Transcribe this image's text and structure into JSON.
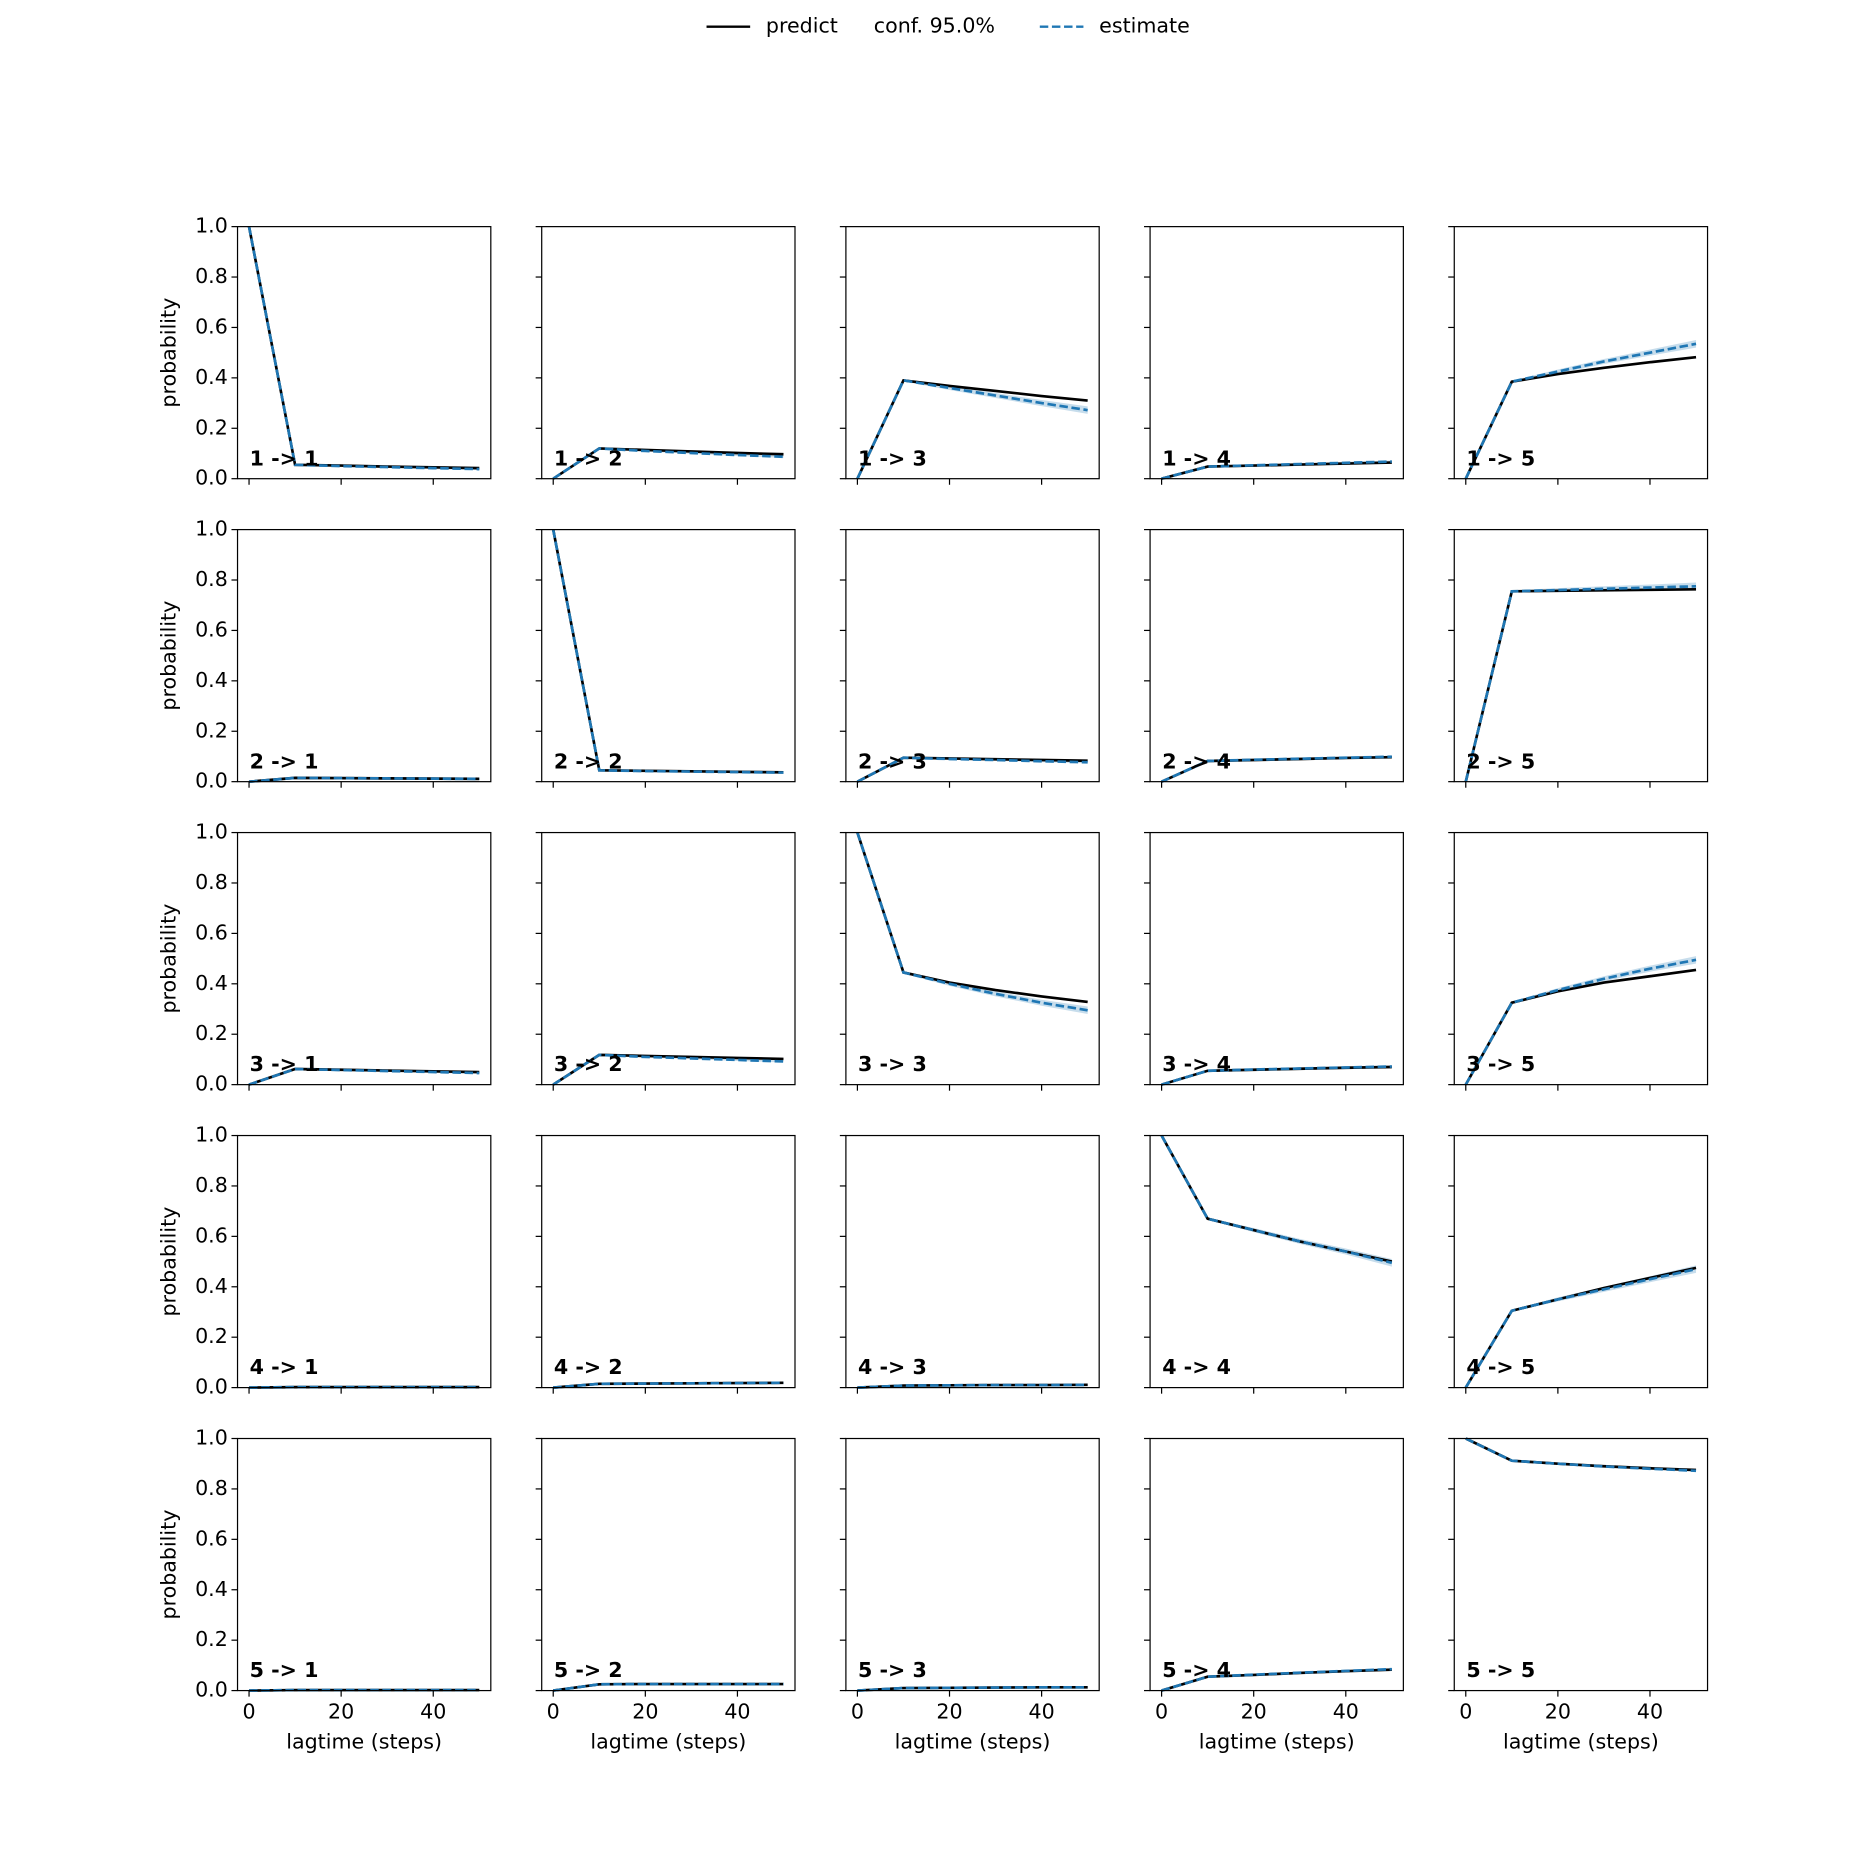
{
  "chart_data": {
    "type": "line",
    "x": [
      0,
      10,
      20,
      30,
      40,
      50
    ],
    "xlim": [
      -2.5,
      52.5
    ],
    "ylim": [
      0,
      1
    ],
    "xticks": [
      0,
      20,
      40
    ],
    "yticks": [
      {
        "value": 0,
        "label": "0.0"
      },
      0.2,
      0.4,
      0.6,
      0.8,
      {
        "value": 1,
        "label": "1.0"
      }
    ],
    "xlabel": "lagtime (steps)",
    "ylabel": "probability",
    "legend": [
      {
        "name": "predict",
        "color": "#000000"
      },
      {
        "name": "conf. 95.0%",
        "color": "#1f77b4"
      },
      {
        "name": "estimate",
        "color": "#1f77b4"
      }
    ],
    "panels": [
      {
        "title": "1 -> 1",
        "predict": [
          1,
          0.055,
          0.052,
          0.048,
          0.045,
          0.042
        ],
        "estimate": [
          1,
          0.055,
          0.05,
          0.046,
          0.042,
          0.038
        ],
        "conf_lower": [
          1,
          0.053,
          0.047,
          0.043,
          0.038,
          0.034
        ],
        "conf_upper": [
          1,
          0.057,
          0.053,
          0.049,
          0.046,
          0.042
        ]
      },
      {
        "title": "1 -> 2",
        "predict": [
          0,
          0.12,
          0.114,
          0.108,
          0.102,
          0.097
        ],
        "estimate": [
          0,
          0.12,
          0.11,
          0.102,
          0.094,
          0.087
        ],
        "conf_lower": [
          0,
          0.118,
          0.107,
          0.099,
          0.09,
          0.083
        ],
        "conf_upper": [
          0,
          0.122,
          0.113,
          0.105,
          0.098,
          0.091
        ]
      },
      {
        "title": "1 -> 3",
        "predict": [
          0,
          0.39,
          0.368,
          0.348,
          0.328,
          0.31
        ],
        "estimate": [
          0,
          0.39,
          0.36,
          0.33,
          0.3,
          0.272
        ],
        "conf_lower": [
          0,
          0.386,
          0.352,
          0.32,
          0.288,
          0.257
        ],
        "conf_upper": [
          0,
          0.394,
          0.368,
          0.34,
          0.312,
          0.287
        ]
      },
      {
        "title": "1 -> 4",
        "predict": [
          0,
          0.048,
          0.052,
          0.056,
          0.06,
          0.064
        ],
        "estimate": [
          0,
          0.048,
          0.053,
          0.058,
          0.063,
          0.068
        ],
        "conf_lower": [
          0,
          0.046,
          0.05,
          0.055,
          0.059,
          0.064
        ],
        "conf_upper": [
          0,
          0.05,
          0.056,
          0.061,
          0.067,
          0.072
        ]
      },
      {
        "title": "1 -> 5",
        "predict": [
          0,
          0.385,
          0.415,
          0.44,
          0.462,
          0.482
        ],
        "estimate": [
          0,
          0.385,
          0.425,
          0.465,
          0.5,
          0.535
        ],
        "conf_lower": [
          0,
          0.381,
          0.417,
          0.455,
          0.488,
          0.52
        ],
        "conf_upper": [
          0,
          0.389,
          0.433,
          0.475,
          0.512,
          0.55
        ]
      },
      {
        "title": "2 -> 1",
        "predict": [
          0,
          0.015,
          0.014,
          0.013,
          0.012,
          0.011
        ],
        "estimate": [
          0,
          0.015,
          0.014,
          0.013,
          0.012,
          0.011
        ],
        "conf_lower": [
          0,
          0.013,
          0.011,
          0.01,
          0.008,
          0.007
        ],
        "conf_upper": [
          0,
          0.017,
          0.017,
          0.016,
          0.016,
          0.015
        ]
      },
      {
        "title": "2 -> 2",
        "predict": [
          1,
          0.045,
          0.043,
          0.041,
          0.039,
          0.037
        ],
        "estimate": [
          1,
          0.045,
          0.042,
          0.04,
          0.038,
          0.036
        ],
        "conf_lower": [
          1,
          0.043,
          0.039,
          0.037,
          0.034,
          0.032
        ],
        "conf_upper": [
          1,
          0.047,
          0.045,
          0.043,
          0.042,
          0.04
        ]
      },
      {
        "title": "2 -> 3",
        "predict": [
          0,
          0.095,
          0.092,
          0.089,
          0.086,
          0.083
        ],
        "estimate": [
          0,
          0.095,
          0.09,
          0.086,
          0.081,
          0.077
        ],
        "conf_lower": [
          0,
          0.093,
          0.087,
          0.083,
          0.077,
          0.073
        ],
        "conf_upper": [
          0,
          0.097,
          0.093,
          0.089,
          0.085,
          0.081
        ]
      },
      {
        "title": "2 -> 4",
        "predict": [
          0,
          0.082,
          0.086,
          0.09,
          0.094,
          0.097
        ],
        "estimate": [
          0,
          0.082,
          0.087,
          0.091,
          0.095,
          0.099
        ],
        "conf_lower": [
          0,
          0.08,
          0.084,
          0.088,
          0.091,
          0.095
        ],
        "conf_upper": [
          0,
          0.084,
          0.09,
          0.094,
          0.099,
          0.103
        ]
      },
      {
        "title": "2 -> 5",
        "predict": [
          0,
          0.755,
          0.757,
          0.759,
          0.761,
          0.763
        ],
        "estimate": [
          0,
          0.755,
          0.76,
          0.765,
          0.77,
          0.775
        ],
        "conf_lower": [
          0,
          0.751,
          0.752,
          0.755,
          0.758,
          0.76
        ],
        "conf_upper": [
          0,
          0.759,
          0.768,
          0.775,
          0.782,
          0.79
        ]
      },
      {
        "title": "3 -> 1",
        "predict": [
          0,
          0.062,
          0.059,
          0.056,
          0.053,
          0.05
        ],
        "estimate": [
          0,
          0.062,
          0.058,
          0.054,
          0.05,
          0.046
        ],
        "conf_lower": [
          0,
          0.06,
          0.055,
          0.051,
          0.046,
          0.042
        ],
        "conf_upper": [
          0,
          0.064,
          0.061,
          0.057,
          0.054,
          0.05
        ]
      },
      {
        "title": "3 -> 2",
        "predict": [
          0,
          0.118,
          0.114,
          0.11,
          0.106,
          0.102
        ],
        "estimate": [
          0,
          0.118,
          0.11,
          0.104,
          0.098,
          0.092
        ],
        "conf_lower": [
          0,
          0.116,
          0.107,
          0.101,
          0.094,
          0.088
        ],
        "conf_upper": [
          0,
          0.12,
          0.113,
          0.107,
          0.102,
          0.096
        ]
      },
      {
        "title": "3 -> 3",
        "predict": [
          1,
          0.445,
          0.405,
          0.375,
          0.35,
          0.328
        ],
        "estimate": [
          1,
          0.445,
          0.4,
          0.36,
          0.325,
          0.295
        ],
        "conf_lower": [
          1,
          0.441,
          0.392,
          0.35,
          0.313,
          0.28
        ],
        "conf_upper": [
          1,
          0.449,
          0.408,
          0.37,
          0.337,
          0.31
        ]
      },
      {
        "title": "3 -> 4",
        "predict": [
          0,
          0.055,
          0.059,
          0.063,
          0.067,
          0.07
        ],
        "estimate": [
          0,
          0.055,
          0.06,
          0.064,
          0.068,
          0.072
        ],
        "conf_lower": [
          0,
          0.053,
          0.057,
          0.061,
          0.064,
          0.068
        ],
        "conf_upper": [
          0,
          0.057,
          0.063,
          0.067,
          0.072,
          0.076
        ]
      },
      {
        "title": "3 -> 5",
        "predict": [
          0,
          0.325,
          0.37,
          0.405,
          0.43,
          0.455
        ],
        "estimate": [
          0,
          0.325,
          0.375,
          0.42,
          0.46,
          0.495
        ],
        "conf_lower": [
          0,
          0.321,
          0.367,
          0.41,
          0.448,
          0.48
        ],
        "conf_upper": [
          0,
          0.329,
          0.383,
          0.43,
          0.472,
          0.51
        ]
      },
      {
        "title": "4 -> 1",
        "predict": [
          0,
          0.002,
          0.002,
          0.002,
          0.002,
          0.002
        ],
        "estimate": [
          0,
          0.002,
          0.002,
          0.002,
          0.002,
          0.002
        ],
        "conf_lower": [
          0,
          0.001,
          0.001,
          0.001,
          0.001,
          0.001
        ],
        "conf_upper": [
          0,
          0.003,
          0.003,
          0.003,
          0.003,
          0.003
        ]
      },
      {
        "title": "4 -> 2",
        "predict": [
          0,
          0.015,
          0.016,
          0.017,
          0.018,
          0.019
        ],
        "estimate": [
          0,
          0.015,
          0.016,
          0.017,
          0.018,
          0.019
        ],
        "conf_lower": [
          0,
          0.013,
          0.013,
          0.014,
          0.014,
          0.015
        ],
        "conf_upper": [
          0,
          0.017,
          0.019,
          0.02,
          0.022,
          0.023
        ]
      },
      {
        "title": "4 -> 3",
        "predict": [
          0,
          0.008,
          0.009,
          0.01,
          0.01,
          0.011
        ],
        "estimate": [
          0,
          0.008,
          0.009,
          0.01,
          0.01,
          0.011
        ],
        "conf_lower": [
          0,
          0.006,
          0.006,
          0.007,
          0.006,
          0.007
        ],
        "conf_upper": [
          0,
          0.01,
          0.012,
          0.013,
          0.014,
          0.015
        ]
      },
      {
        "title": "4 -> 4",
        "predict": [
          1,
          0.67,
          0.625,
          0.58,
          0.54,
          0.5
        ],
        "estimate": [
          1,
          0.67,
          0.625,
          0.58,
          0.54,
          0.495
        ],
        "conf_lower": [
          1,
          0.666,
          0.617,
          0.57,
          0.528,
          0.48
        ],
        "conf_upper": [
          1,
          0.674,
          0.633,
          0.59,
          0.552,
          0.51
        ]
      },
      {
        "title": "4 -> 5",
        "predict": [
          0,
          0.305,
          0.35,
          0.395,
          0.435,
          0.475
        ],
        "estimate": [
          0,
          0.305,
          0.35,
          0.39,
          0.43,
          0.47
        ],
        "conf_lower": [
          0,
          0.301,
          0.342,
          0.38,
          0.418,
          0.455
        ],
        "conf_upper": [
          0,
          0.309,
          0.358,
          0.4,
          0.442,
          0.485
        ]
      },
      {
        "title": "5 -> 1",
        "predict": [
          0,
          0.002,
          0.002,
          0.002,
          0.002,
          0.002
        ],
        "estimate": [
          0,
          0.002,
          0.002,
          0.002,
          0.002,
          0.002
        ],
        "conf_lower": [
          0,
          0.001,
          0.001,
          0.001,
          0.001,
          0.001
        ],
        "conf_upper": [
          0,
          0.003,
          0.003,
          0.003,
          0.003,
          0.003
        ]
      },
      {
        "title": "5 -> 2",
        "predict": [
          0,
          0.025,
          0.026,
          0.026,
          0.026,
          0.026
        ],
        "estimate": [
          0,
          0.025,
          0.026,
          0.026,
          0.026,
          0.026
        ],
        "conf_lower": [
          0,
          0.023,
          0.023,
          0.023,
          0.022,
          0.022
        ],
        "conf_upper": [
          0,
          0.027,
          0.029,
          0.029,
          0.03,
          0.03
        ]
      },
      {
        "title": "5 -> 3",
        "predict": [
          0,
          0.01,
          0.011,
          0.012,
          0.013,
          0.013
        ],
        "estimate": [
          0,
          0.01,
          0.011,
          0.012,
          0.013,
          0.013
        ],
        "conf_lower": [
          0,
          0.008,
          0.008,
          0.009,
          0.009,
          0.009
        ],
        "conf_upper": [
          0,
          0.012,
          0.014,
          0.015,
          0.017,
          0.017
        ]
      },
      {
        "title": "5 -> 4",
        "predict": [
          0,
          0.055,
          0.062,
          0.07,
          0.077,
          0.083
        ],
        "estimate": [
          0,
          0.055,
          0.063,
          0.071,
          0.078,
          0.085
        ],
        "conf_lower": [
          0,
          0.053,
          0.06,
          0.068,
          0.074,
          0.081
        ],
        "conf_upper": [
          0,
          0.057,
          0.066,
          0.074,
          0.082,
          0.089
        ]
      },
      {
        "title": "5 -> 5",
        "predict": [
          1,
          0.912,
          0.9,
          0.89,
          0.882,
          0.875
        ],
        "estimate": [
          1,
          0.912,
          0.9,
          0.889,
          0.88,
          0.872
        ],
        "conf_lower": [
          1,
          0.91,
          0.897,
          0.886,
          0.876,
          0.868
        ],
        "conf_upper": [
          1,
          0.914,
          0.903,
          0.892,
          0.884,
          0.876
        ]
      }
    ]
  }
}
